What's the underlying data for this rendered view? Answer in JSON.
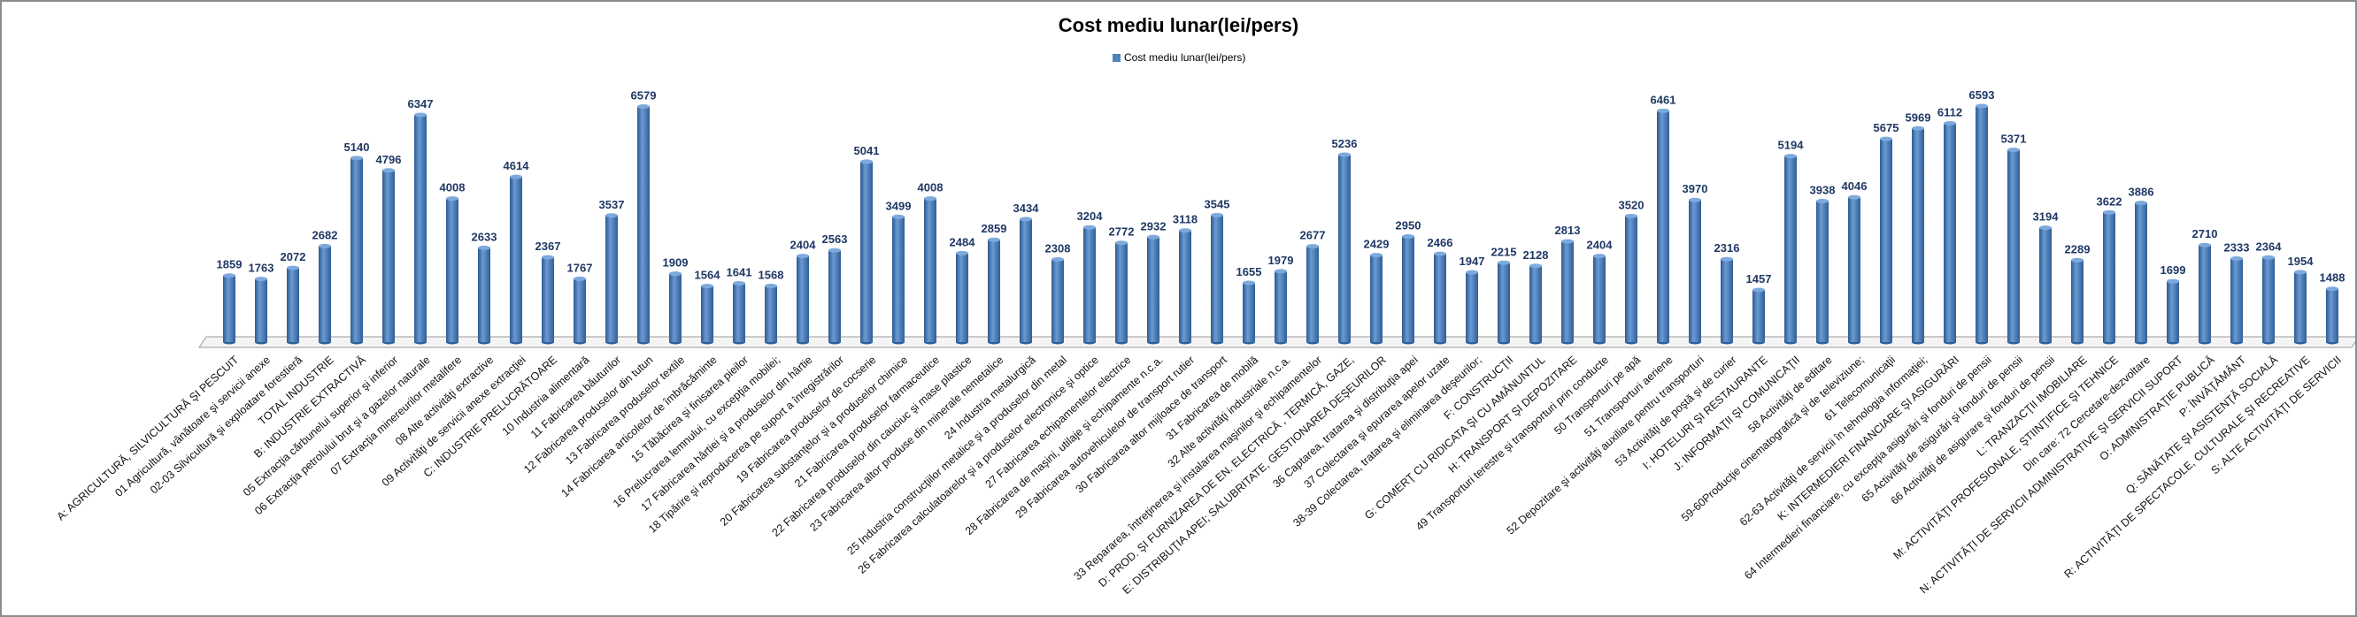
{
  "chart_data": {
    "type": "bar",
    "title": "Cost mediu lunar(lei/pers)",
    "legend": {
      "entries": [
        "Cost mediu lunar(lei/pers)"
      ],
      "placement": "top-center"
    },
    "xlabel": "",
    "ylabel": "",
    "ylim": [
      0,
      7000
    ],
    "grid": false,
    "style": "3d-cylinder",
    "colors": {
      "bar": "#4F81BD",
      "data_label": "#1F3864"
    },
    "series": [
      {
        "name": "Cost mediu lunar(lei/pers)",
        "values": [
          1859,
          1763,
          2072,
          2682,
          5140,
          4796,
          6347,
          4008,
          2633,
          4614,
          2367,
          1767,
          3537,
          6579,
          1909,
          1564,
          1641,
          1568,
          2404,
          2563,
          5041,
          3499,
          4008,
          2484,
          2859,
          3434,
          2308,
          3204,
          2772,
          2932,
          3118,
          3545,
          1655,
          1979,
          2677,
          5236,
          2429,
          2950,
          2466,
          1947,
          2215,
          2128,
          2813,
          2404,
          3520,
          6461,
          3970,
          2316,
          1457,
          5194,
          3938,
          4046,
          5675,
          5969,
          6112,
          6593,
          5371,
          3194,
          2289,
          3622,
          3886,
          1699,
          2710,
          2333,
          2364,
          1954,
          1488
        ]
      }
    ],
    "categories": [
      "A: AGRICULTURĂ, SILVICULTURĂ ŞI PESCUIT",
      "01 Agricultură, vânătoare şi servicii anexe",
      "02-03 Silvicultură şi exploatare forestieră",
      "TOTAL INDUSTRIE",
      "B: INDUSTRIE EXTRACTIVĂ",
      "05 Extracţia cărbunelui superior şi inferior",
      "06 Extracţia petrolului brut şi a gazelor naturale",
      "07 Extracţia minereurilor metalifere",
      "08 Alte activităţi extractive",
      "09 Activităţi de servicii anexe extracţiei",
      "C: INDUSTRIE PRELUCRĂTOARE",
      "10 Industria alimentară",
      "11 Fabricarea băuturilor",
      "12 Fabricarea produselor din tutun",
      "13 Fabricarea produselor textile",
      "14 Fabricarea articolelor de îmbrăcăminte",
      "15 Tăbăcirea şi finisarea pieilor",
      "16 Prelucrarea lemnului,  cu excepţia mobilei;",
      "17 Fabricarea hârtiei şi a produselor din hârtie",
      "18 Tipărire şi reproducerea pe suport a înregistrărilor",
      "19 Fabricarea produselor de cocserie",
      "20 Fabricarea substanţelor şi a produselor chimice",
      "21 Fabricarea produselor farmaceutice",
      "22 Fabricarea produselor din cauciuc şi mase plastice",
      "23 Fabricarea altor produse din minerale nemetalice",
      "24 Industria metalurgică",
      "25 Industria construcţiilor metalice şi a produselor din metal",
      "26 Fabricarea calculatoarelor şi a produselor electronice şi optice",
      "27 Fabricarea echipamentelor electrice",
      "28 Fabricarea de maşini, utilaje şi echipamente n.c.a.",
      "29 Fabricarea autovehiculelor de transport rutier",
      "30 Fabricarea altor mijloace de transport",
      "31 Fabricarea de mobilă",
      "32 Alte activităţi industriale n.c.a.",
      "33 Repararea, întreţinerea şi instalarea maşinilor şi echipamentelor",
      "D: PROD. ŞI FURNIZAREA DE EN. ELECTRICĂ , TERMICĂ, GAZE,",
      "E: DISTRIBUŢIA APEI; SALUBRITATE, GESTIONAREA DEŞEURILOR",
      "36 Captarea,  tratarea şi distribuţia apei",
      "37 Colectarea şi epurarea apelor uzate",
      "38-39 Colectarea, tratarea şi eliminarea deşeurilor;",
      "F: CONSTRUCŢII",
      "G: COMERŢ CU RIDICATA ŞI CU AMĂNUNTUL",
      "H: TRANSPORT ŞI DEPOZITARE",
      "49 Transporturi terestre şi transporturi prin conducte",
      "50 Transporturi pe apă",
      "51 Transporturi aeriene",
      "52 Depozitare şi activităţi auxiliare pentru transporturi",
      "53 Activităţi de poştă şi de curier",
      "I: HOTELURI ŞI RESTAURANTE",
      "J: INFORMAŢII ŞI COMUNICAŢII",
      "58 Activităţi de editare",
      "59-60Producţie cinematografică şi de televiziune;",
      "61 Telecomunicaţii",
      "62-63 Activităţi de servicii în tehnologia informaţiei;",
      "K: INTERMEDIERI FINANCIARE ŞI ASIGURĂRI",
      "64 Intermedieri financiare, cu excepţia  asigurări şi fonduri de pensii",
      "65 Activităţi de asigurări şi fonduri de pensii",
      "66 Activităţi de asigurare şi fonduri de pensii",
      "L: TRANZACŢII IMOBILIARE",
      "M: ACTIVITĂŢI PROFESIONALE, ŞTIINŢIFICE ŞI TEHNICE",
      "Din care: 72 Cercetare-dezvoltare",
      "N: ACTIVITĂŢI DE SERVICII ADMINISTRATIVE ŞI  SERVICII SUPORT",
      "O: ADMINISTRAŢIE PUBLICĂ",
      "P: ÎNVĂŢĂMÂNT",
      "Q: SĂNĂTATE ŞI ASISTENŢĂ SOCIALĂ",
      "R: ACTIVITĂŢI DE SPECTACOLE, CULTURALE ŞI RECREATIVE",
      "S: ALTE ACTIVITĂŢI DE SERVICII"
    ]
  }
}
